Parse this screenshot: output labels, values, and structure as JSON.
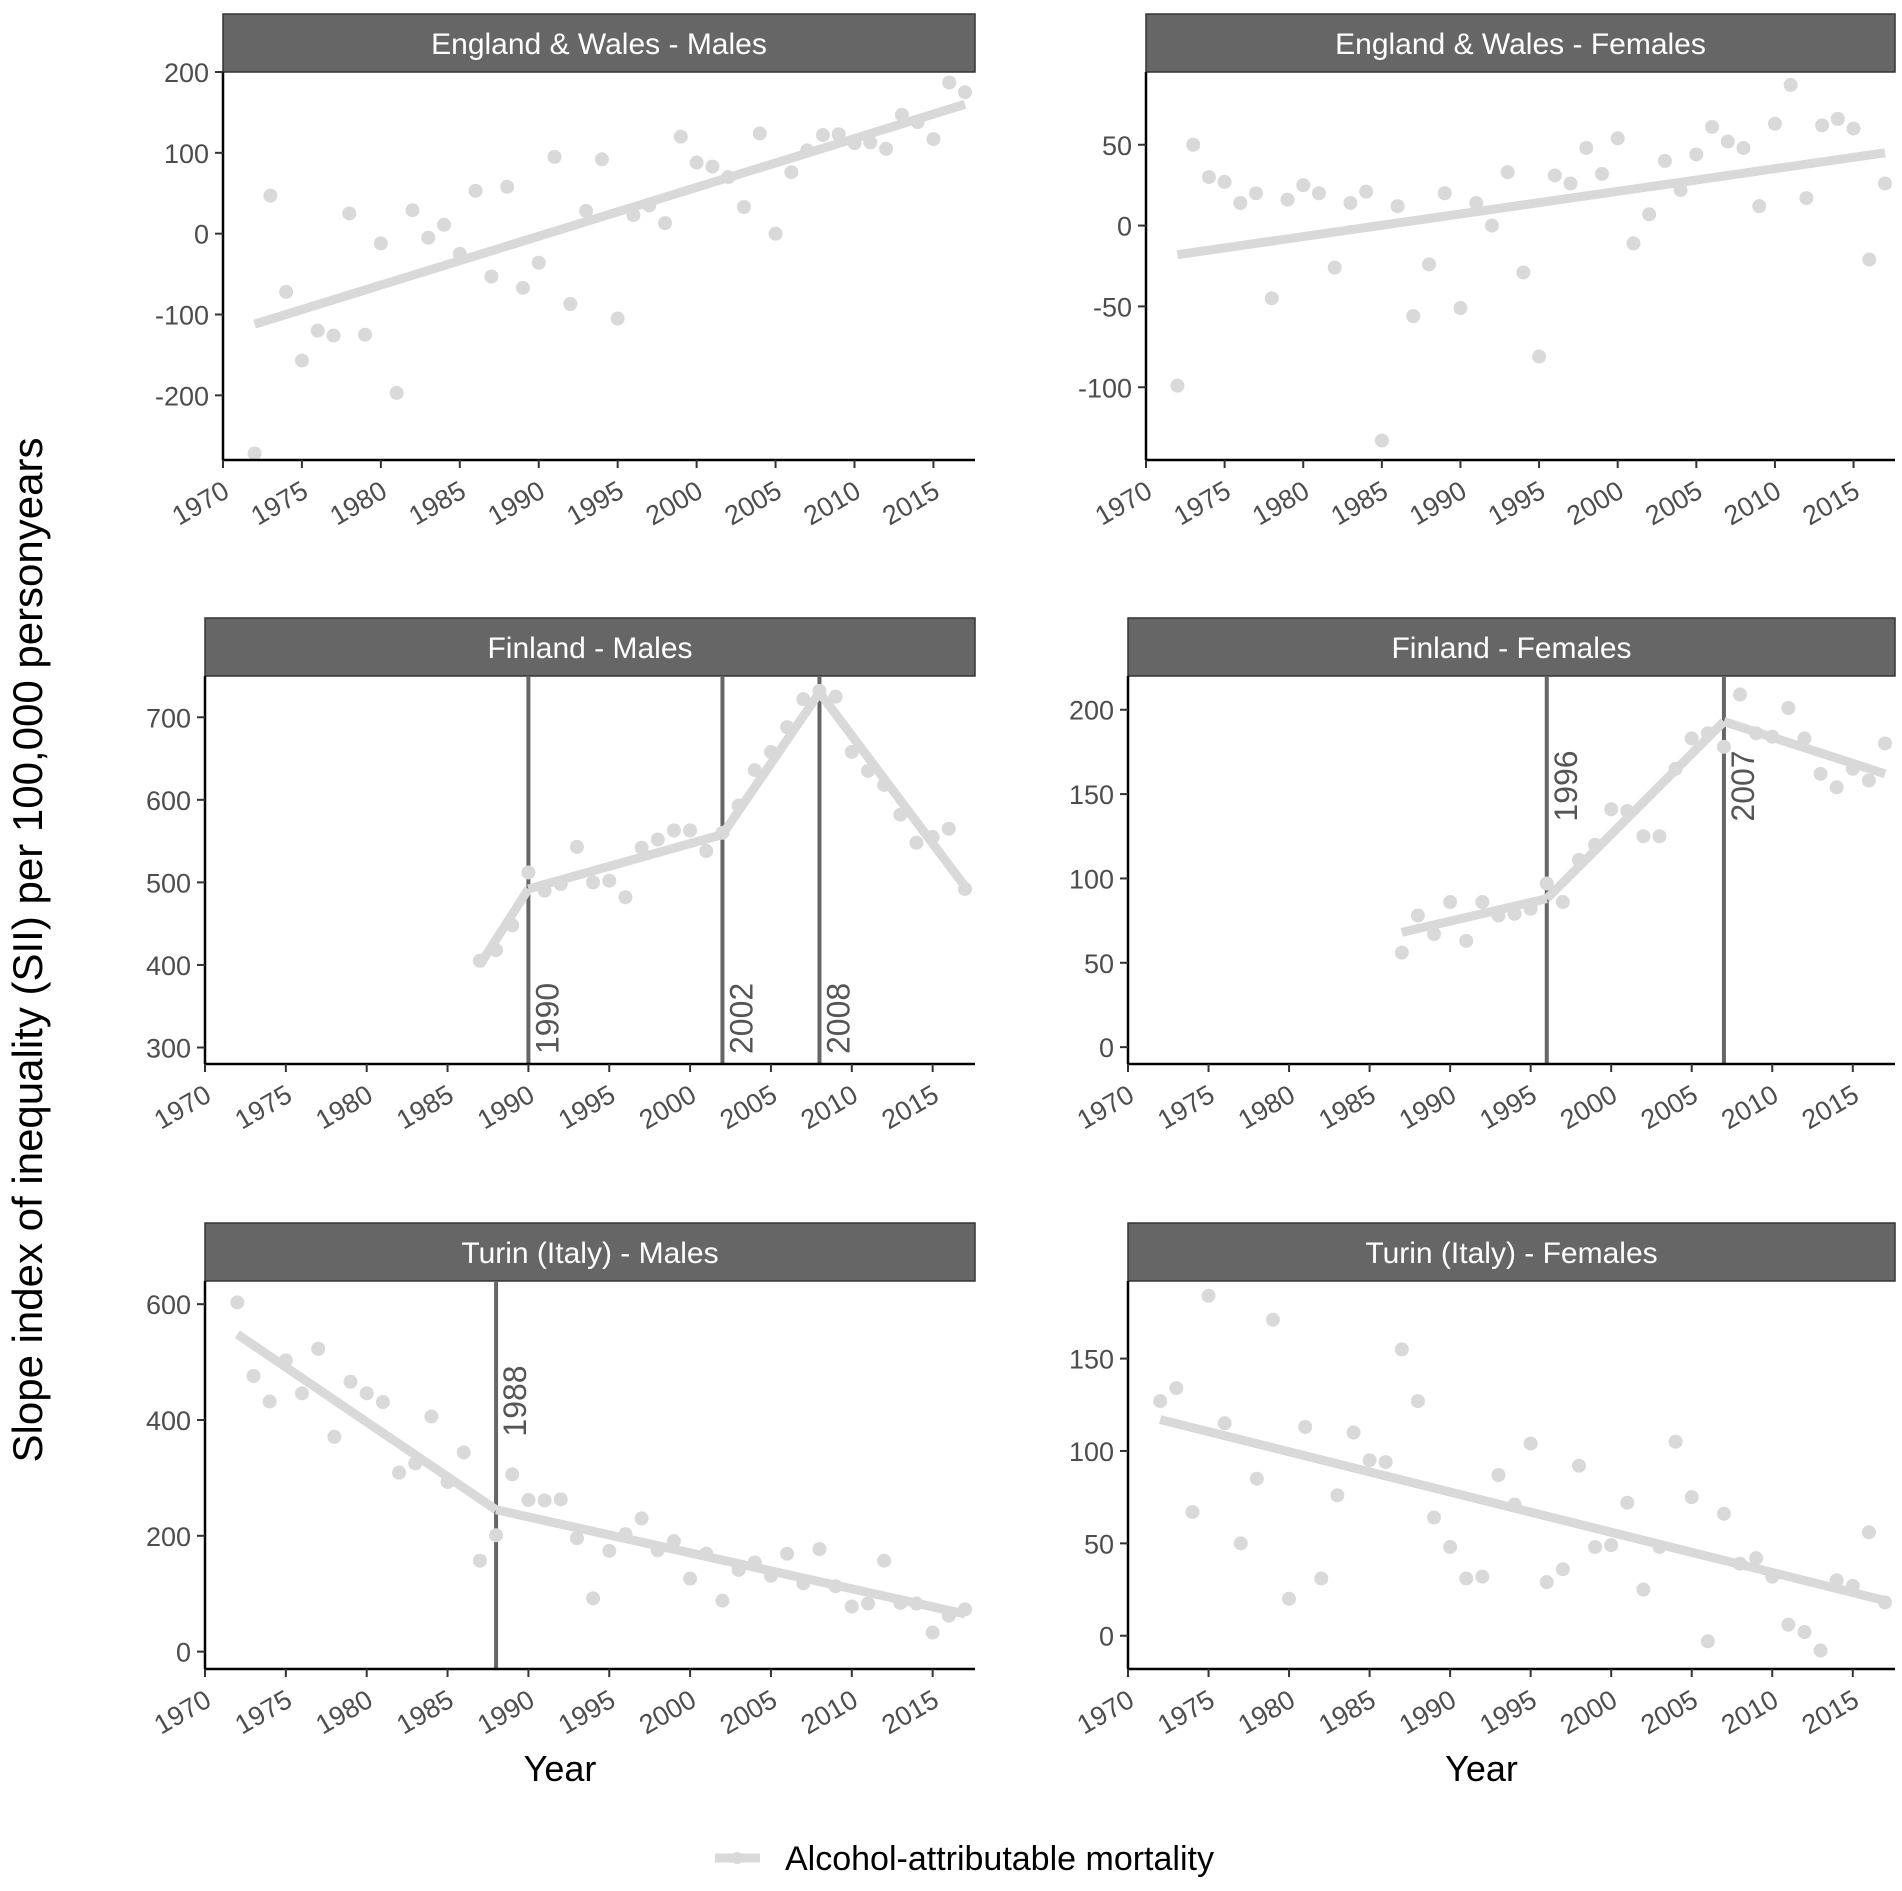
{
  "figure": {
    "ylabel": "Slope index of inequality (SII) per 100,000 personyears",
    "xlabel": "Year",
    "legend": {
      "label": "Alcohol-attributable mortality",
      "position": "bottom"
    },
    "colors": {
      "points": "#d9d9d9",
      "fit": "#d9d9d9",
      "strip": "#666666",
      "breakpoint": "#666666",
      "axis": "#000000"
    }
  },
  "chart_data": [
    {
      "type": "scatter",
      "title": "England & Wales - Males",
      "xlabel": "",
      "ylabel": "",
      "xlim": [
        1970,
        2017
      ],
      "ylim": [
        -280,
        200
      ],
      "xticks": [
        1970,
        1975,
        1980,
        1985,
        1990,
        1995,
        2000,
        2005,
        2010,
        2015
      ],
      "yticks": [
        -200,
        -100,
        0,
        100,
        200
      ],
      "x": [
        1972,
        1973,
        1974,
        1975,
        1976,
        1977,
        1978,
        1979,
        1980,
        1981,
        1982,
        1983,
        1984,
        1985,
        1986,
        1987,
        1988,
        1989,
        1990,
        1991,
        1992,
        1993,
        1994,
        1995,
        1996,
        1997,
        1998,
        1999,
        2000,
        2001,
        2002,
        2003,
        2004,
        2005,
        2006,
        2007,
        2008,
        2009,
        2010,
        2011,
        2012,
        2013,
        2014,
        2015,
        2016,
        2017
      ],
      "y": [
        -272,
        47,
        -72,
        -157,
        -120,
        -126,
        25,
        -125,
        -12,
        -197,
        29,
        -5,
        11,
        -25,
        53,
        -53,
        58,
        -67,
        -36,
        95,
        -87,
        28,
        92,
        -105,
        23,
        35,
        13,
        120,
        88,
        83,
        70,
        33,
        124,
        0,
        76,
        103,
        122,
        123,
        112,
        113,
        105,
        147,
        138,
        117,
        187,
        175
      ],
      "fit": [
        {
          "x": [
            1972,
            2017
          ],
          "y": [
            -112,
            160
          ]
        }
      ],
      "breakpoints": []
    },
    {
      "type": "scatter",
      "title": "England & Wales - Females",
      "xlabel": "",
      "ylabel": "",
      "xlim": [
        1970,
        2017
      ],
      "ylim": [
        -145,
        95
      ],
      "xticks": [
        1970,
        1975,
        1980,
        1985,
        1990,
        1995,
        2000,
        2005,
        2010,
        2015
      ],
      "yticks": [
        -100,
        -50,
        0,
        50
      ],
      "x": [
        1972,
        1973,
        1974,
        1975,
        1976,
        1977,
        1978,
        1979,
        1980,
        1981,
        1982,
        1983,
        1984,
        1985,
        1986,
        1987,
        1988,
        1989,
        1990,
        1991,
        1992,
        1993,
        1994,
        1995,
        1996,
        1997,
        1998,
        1999,
        2000,
        2001,
        2002,
        2003,
        2004,
        2005,
        2006,
        2007,
        2008,
        2009,
        2010,
        2011,
        2012,
        2013,
        2014,
        2015,
        2016,
        2017
      ],
      "y": [
        -99,
        50,
        30,
        27,
        14,
        20,
        -45,
        16,
        25,
        20,
        -26,
        14,
        21,
        -133,
        12,
        -56,
        -24,
        20,
        -51,
        14,
        0,
        33,
        -29,
        -81,
        31,
        26,
        48,
        32,
        54,
        -11,
        7,
        40,
        22,
        44,
        61,
        52,
        48,
        12,
        63,
        87,
        17,
        62,
        66,
        60,
        -21,
        26
      ],
      "fit": [
        {
          "x": [
            1972,
            2017
          ],
          "y": [
            -18,
            45
          ]
        }
      ],
      "breakpoints": []
    },
    {
      "type": "scatter",
      "title": "Finland - Males",
      "xlabel": "",
      "ylabel": "",
      "xlim": [
        1970,
        2017
      ],
      "ylim": [
        280,
        750
      ],
      "xticks": [
        1970,
        1975,
        1980,
        1985,
        1990,
        1995,
        2000,
        2005,
        2010,
        2015
      ],
      "yticks": [
        300,
        400,
        500,
        600,
        700
      ],
      "x": [
        1987,
        1988,
        1989,
        1990,
        1991,
        1992,
        1993,
        1994,
        1995,
        1996,
        1997,
        1998,
        1999,
        2000,
        2001,
        2002,
        2003,
        2004,
        2005,
        2006,
        2007,
        2008,
        2009,
        2010,
        2011,
        2012,
        2013,
        2014,
        2015,
        2016,
        2017
      ],
      "y": [
        405,
        418,
        448,
        512,
        490,
        498,
        543,
        500,
        502,
        482,
        542,
        552,
        563,
        563,
        538,
        560,
        593,
        636,
        658,
        688,
        722,
        732,
        725,
        658,
        635,
        618,
        582,
        548,
        555,
        565,
        492
      ],
      "fit": [
        {
          "x": [
            1987,
            1990
          ],
          "y": [
            400,
            492
          ]
        },
        {
          "x": [
            1990,
            2002
          ],
          "y": [
            492,
            558
          ]
        },
        {
          "x": [
            2002,
            2008
          ],
          "y": [
            558,
            730
          ]
        },
        {
          "x": [
            2008,
            2017
          ],
          "y": [
            730,
            495
          ]
        }
      ],
      "breakpoints": [
        {
          "year": 1990,
          "label": "1990"
        },
        {
          "year": 2002,
          "label": "2002"
        },
        {
          "year": 2008,
          "label": "2008"
        }
      ]
    },
    {
      "type": "scatter",
      "title": "Finland - Females",
      "xlabel": "",
      "ylabel": "",
      "xlim": [
        1970,
        2017
      ],
      "ylim": [
        -10,
        220
      ],
      "xticks": [
        1970,
        1975,
        1980,
        1985,
        1990,
        1995,
        2000,
        2005,
        2010,
        2015
      ],
      "yticks": [
        0,
        50,
        100,
        150,
        200
      ],
      "x": [
        1987,
        1988,
        1989,
        1990,
        1991,
        1992,
        1993,
        1994,
        1995,
        1996,
        1997,
        1998,
        1999,
        2000,
        2001,
        2002,
        2003,
        2004,
        2005,
        2006,
        2007,
        2008,
        2009,
        2010,
        2011,
        2012,
        2013,
        2014,
        2015,
        2016,
        2017
      ],
      "y": [
        56,
        78,
        67,
        86,
        63,
        86,
        78,
        79,
        82,
        97,
        86,
        111,
        120,
        141,
        140,
        125,
        125,
        165,
        183,
        186,
        178,
        209,
        186,
        184,
        201,
        183,
        162,
        154,
        165,
        158,
        180
      ],
      "fit": [
        {
          "x": [
            1987,
            1996
          ],
          "y": [
            68,
            88
          ]
        },
        {
          "x": [
            1996,
            2007
          ],
          "y": [
            88,
            193
          ]
        },
        {
          "x": [
            2007,
            2017
          ],
          "y": [
            193,
            162
          ]
        }
      ],
      "breakpoints": [
        {
          "year": 1996,
          "label": "1996"
        },
        {
          "year": 2007,
          "label": "2007"
        }
      ]
    },
    {
      "type": "scatter",
      "title": "Turin (Italy) - Males",
      "xlabel": "Year",
      "ylabel": "",
      "xlim": [
        1970,
        2017
      ],
      "ylim": [
        -30,
        640
      ],
      "xticks": [
        1970,
        1975,
        1980,
        1985,
        1990,
        1995,
        2000,
        2005,
        2010,
        2015
      ],
      "yticks": [
        0,
        200,
        400,
        600
      ],
      "x": [
        1972,
        1973,
        1974,
        1975,
        1976,
        1977,
        1978,
        1979,
        1980,
        1981,
        1982,
        1983,
        1984,
        1985,
        1986,
        1987,
        1988,
        1989,
        1990,
        1991,
        1992,
        1993,
        1994,
        1995,
        1996,
        1997,
        1998,
        1999,
        2000,
        2001,
        2002,
        2003,
        2004,
        2005,
        2006,
        2007,
        2008,
        2009,
        2010,
        2011,
        2012,
        2013,
        2014,
        2015,
        2016,
        2017
      ],
      "y": [
        603,
        476,
        432,
        503,
        446,
        523,
        371,
        466,
        446,
        431,
        309,
        325,
        406,
        293,
        344,
        157,
        201,
        306,
        262,
        261,
        263,
        196,
        92,
        174,
        203,
        230,
        175,
        191,
        126,
        169,
        88,
        141,
        154,
        131,
        169,
        118,
        177,
        113,
        78,
        83,
        157,
        84,
        83,
        33,
        62,
        73
      ],
      "fit": [
        {
          "x": [
            1972,
            1988
          ],
          "y": [
            548,
            245
          ]
        },
        {
          "x": [
            1988,
            2017
          ],
          "y": [
            245,
            65
          ]
        }
      ],
      "breakpoints": [
        {
          "year": 1988,
          "label": "1988"
        }
      ]
    },
    {
      "type": "scatter",
      "title": "Turin (Italy) - Females",
      "xlabel": "Year",
      "ylabel": "",
      "xlim": [
        1970,
        2017
      ],
      "ylim": [
        -18,
        192
      ],
      "xticks": [
        1970,
        1975,
        1980,
        1985,
        1990,
        1995,
        2000,
        2005,
        2010,
        2015
      ],
      "yticks": [
        0,
        50,
        100,
        150
      ],
      "x": [
        1972,
        1973,
        1974,
        1975,
        1976,
        1977,
        1978,
        1979,
        1980,
        1981,
        1982,
        1983,
        1984,
        1985,
        1986,
        1987,
        1988,
        1989,
        1990,
        1991,
        1992,
        1993,
        1994,
        1995,
        1996,
        1997,
        1998,
        1999,
        2000,
        2001,
        2002,
        2003,
        2004,
        2005,
        2006,
        2007,
        2008,
        2009,
        2010,
        2011,
        2012,
        2013,
        2014,
        2015,
        2016,
        2017
      ],
      "y": [
        127,
        134,
        67,
        184,
        115,
        50,
        85,
        171,
        20,
        113,
        31,
        76,
        110,
        95,
        94,
        155,
        127,
        64,
        48,
        31,
        32,
        87,
        71,
        104,
        29,
        36,
        92,
        48,
        49,
        72,
        25,
        48,
        105,
        75,
        -3,
        66,
        39,
        42,
        32,
        6,
        2,
        -8,
        30,
        27,
        56,
        18
      ],
      "fit": [
        {
          "x": [
            1972,
            2017
          ],
          "y": [
            117,
            19
          ]
        }
      ],
      "breakpoints": []
    }
  ]
}
